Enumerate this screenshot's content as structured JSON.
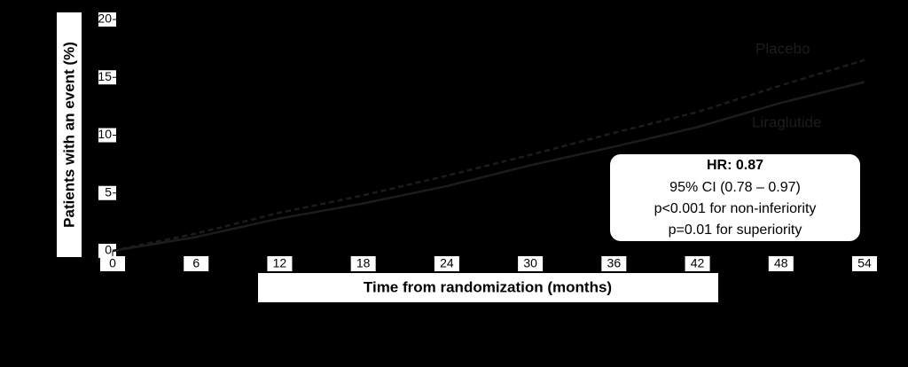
{
  "chart_data": {
    "type": "line",
    "ylabel": "Patients with an event (%)",
    "xlabel": "Time from randomization (months)",
    "x": [
      0,
      6,
      12,
      18,
      24,
      30,
      36,
      42,
      48,
      54
    ],
    "series": [
      {
        "name": "Placebo",
        "color": "#1c1c1c",
        "dash": true,
        "values": [
          0,
          1.5,
          3.3,
          4.8,
          6.5,
          8.3,
          10.2,
          12,
          14.3,
          16.5
        ]
      },
      {
        "name": "Liraglutide",
        "color": "#1c1c1c",
        "dash": false,
        "values": [
          0,
          1.2,
          2.8,
          4.1,
          5.6,
          7.4,
          9,
          10.7,
          12.8,
          14.6
        ]
      }
    ],
    "xlim": [
      0,
      54
    ],
    "xticks": [
      0,
      6,
      12,
      18,
      24,
      30,
      36,
      42,
      48,
      54
    ],
    "ylim": [
      0,
      20
    ],
    "yticks": [
      0,
      5,
      10,
      15,
      20
    ],
    "hr_box": [
      "HR: 0.87",
      "95% CI (0.78 – 0.97)",
      "p<0.001 for non-inferiority",
      "p=0.01 for superiority"
    ]
  }
}
